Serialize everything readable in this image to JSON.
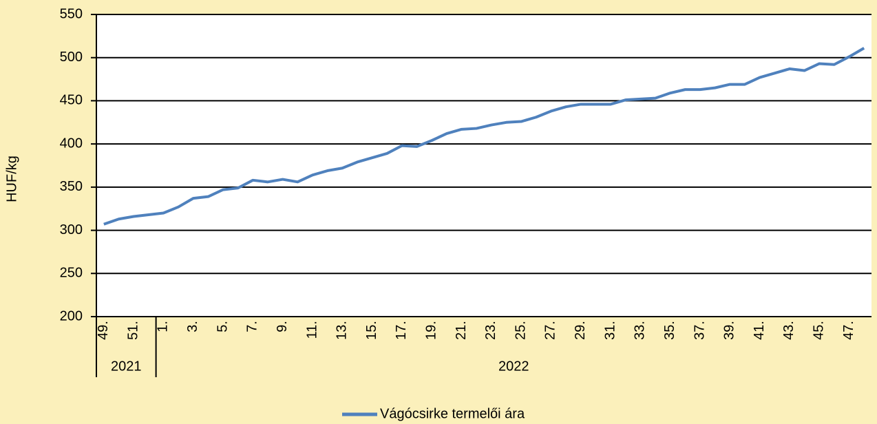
{
  "chart_data": {
    "type": "line",
    "y_axis_label": "HUF/kg",
    "categories": [
      "49.",
      null,
      "51.",
      null,
      "1.",
      null,
      "3.",
      null,
      "5.",
      null,
      "7.",
      null,
      "9.",
      null,
      "11.",
      null,
      "13.",
      null,
      "15.",
      null,
      "17.",
      null,
      "19.",
      null,
      "21.",
      null,
      "23.",
      null,
      "25.",
      null,
      "27.",
      null,
      "29.",
      null,
      "31.",
      null,
      "33.",
      null,
      "35.",
      null,
      "37.",
      null,
      "39.",
      null,
      "41.",
      null,
      "43.",
      null,
      "45.",
      null,
      "47.",
      null
    ],
    "category_groups": [
      {
        "label": "2021",
        "size": 4
      },
      {
        "label": "2022",
        "size": 48
      }
    ],
    "series": [
      {
        "name": "Vágócsirke termelői ára",
        "color": "#4f81bd",
        "values": [
          307,
          313,
          316,
          318,
          320,
          327,
          337,
          339,
          347,
          349,
          358,
          356,
          359,
          356,
          364,
          369,
          372,
          379,
          384,
          389,
          398,
          397,
          404,
          412,
          417,
          418,
          422,
          425,
          426,
          431,
          438,
          443,
          446,
          446,
          446,
          451,
          452,
          453,
          459,
          463,
          463,
          465,
          469,
          469,
          477,
          482,
          487,
          485,
          493,
          492,
          501,
          511
        ]
      }
    ],
    "ylim": [
      200,
      550
    ],
    "yticks": [
      200,
      250,
      300,
      350,
      400,
      450,
      500,
      550
    ],
    "grid": true,
    "legend": "bottom"
  }
}
